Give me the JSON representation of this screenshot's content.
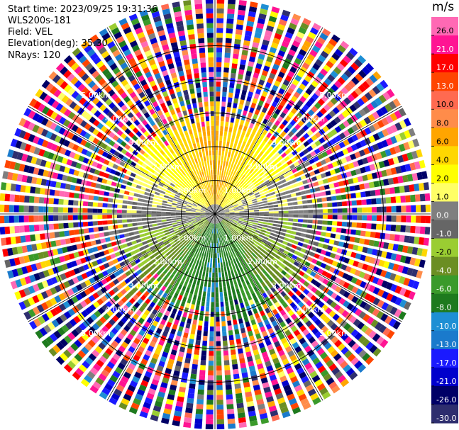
{
  "header": {
    "start_time": "Start time: 2023/09/25 19:31:36",
    "instrument": "WLS200s-181",
    "field": "Field: VEL",
    "elevation": "Elevation(deg): 35.30",
    "nrays": "NRays: 120"
  },
  "chart_data": {
    "type": "heatmap",
    "projection": "polar-ppi",
    "nrays": 120,
    "range_rings_km": [
      1.0,
      2.0,
      3.0,
      4.0,
      5.0
    ],
    "range_ring_labels": [
      "1.00km",
      "2.00km",
      "3.00km",
      "4.00km",
      "5.00km"
    ],
    "max_range_km": 6.4,
    "colorbar": {
      "unit": "m/s",
      "bounds": [
        -30,
        -26,
        -21,
        -17,
        -13,
        -10,
        -8,
        -6,
        -4,
        -2,
        -1,
        0,
        1,
        2,
        4,
        6,
        8,
        10,
        13,
        17,
        21,
        26,
        30
      ],
      "tick_labels": [
        "26.0",
        "21.0",
        "17.0",
        "13.0",
        "10.0",
        "8.0",
        "6.0",
        "4.0",
        "2.0",
        "1.0",
        "0.0",
        "-1.0",
        "-2.0",
        "-4.0",
        "-6.0",
        "-8.0",
        "-10.0",
        "-13.0",
        "-17.0",
        "-21.0",
        "-26.0",
        "-30.0"
      ],
      "colors": [
        "#2e2e6e",
        "#000066",
        "#0000cc",
        "#1a1aff",
        "#1a7acc",
        "#1e8fd4",
        "#1e7a1e",
        "#3a9a2a",
        "#6b8e23",
        "#9acd32",
        "#666666",
        "#7f7f7f",
        "#ffff66",
        "#ffff00",
        "#ffd700",
        "#ffa500",
        "#ff8c4a",
        "#ff6a50",
        "#ff4500",
        "#ff0000",
        "#ff1493",
        "#ff69b4"
      ]
    },
    "valid_range_km": 2.5,
    "field_pattern": [
      {
        "azimuth_deg": 0,
        "velocity": 6.5
      },
      {
        "azimuth_deg": 30,
        "velocity": 4.5
      },
      {
        "azimuth_deg": 60,
        "velocity": 1.5
      },
      {
        "azimuth_deg": 90,
        "velocity": 0
      },
      {
        "azimuth_deg": 120,
        "velocity": -1.5
      },
      {
        "azimuth_deg": 150,
        "velocity": -5
      },
      {
        "azimuth_deg": 180,
        "velocity": -8
      },
      {
        "azimuth_deg": 210,
        "velocity": -5
      },
      {
        "azimuth_deg": 240,
        "velocity": -1.5
      },
      {
        "azimuth_deg": 270,
        "velocity": 0
      },
      {
        "azimuth_deg": 300,
        "velocity": 1.5
      },
      {
        "azimuth_deg": 330,
        "velocity": 4.5
      }
    ]
  }
}
